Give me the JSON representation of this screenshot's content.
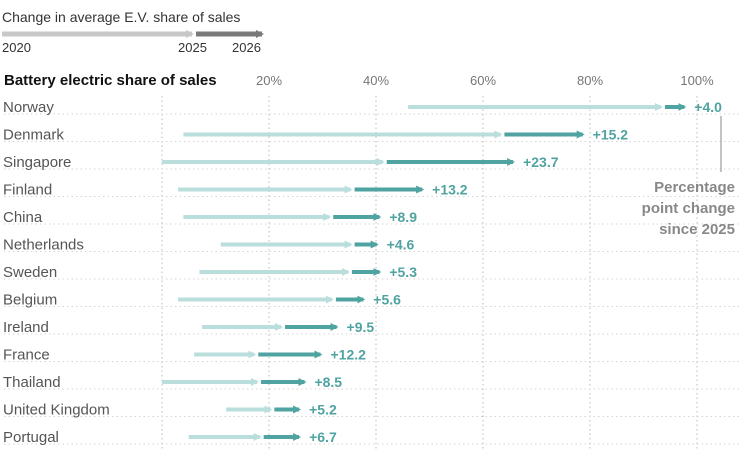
{
  "legend": {
    "title": "Change in average E.V. share of sales",
    "year_start": "2020",
    "year_mid": "2025",
    "year_end": "2026"
  },
  "annotation": {
    "lines": [
      "Percentage",
      "point change",
      "since 2025"
    ]
  },
  "colors": {
    "early_segment": "#b9dedb",
    "recent_segment": "#4fa3a0",
    "legend_early": "#c8c8c8",
    "legend_recent": "#7a7a7a",
    "change_label": "#4fa3a0",
    "grid": "#bbbbbb"
  },
  "chart_data": {
    "type": "arrow",
    "title": "Battery electric share of sales",
    "x_unit": "%",
    "xlim": [
      0,
      105
    ],
    "xticks": [
      20,
      40,
      60,
      80,
      100
    ],
    "xtick_labels": [
      "20%",
      "40%",
      "60%",
      "80%",
      "100%"
    ],
    "grid": true,
    "series_names": [
      "2020",
      "2025",
      "2026"
    ],
    "rows": [
      {
        "country": "Norway",
        "v2020": 46,
        "v2025": 94,
        "v2026": 98,
        "change_label": "+4.0"
      },
      {
        "country": "Denmark",
        "v2020": 4,
        "v2025": 64,
        "v2026": 79,
        "change_label": "+15.2"
      },
      {
        "country": "Singapore",
        "v2020": 0,
        "v2025": 42,
        "v2026": 66,
        "change_label": "+23.7"
      },
      {
        "country": "Finland",
        "v2020": 3,
        "v2025": 36,
        "v2026": 49,
        "change_label": "+13.2"
      },
      {
        "country": "China",
        "v2020": 4,
        "v2025": 32,
        "v2026": 41,
        "change_label": "+8.9"
      },
      {
        "country": "Netherlands",
        "v2020": 11,
        "v2025": 36,
        "v2026": 40.5,
        "change_label": "+4.6"
      },
      {
        "country": "Sweden",
        "v2020": 7,
        "v2025": 35.5,
        "v2026": 41,
        "change_label": "+5.3"
      },
      {
        "country": "Belgium",
        "v2020": 3,
        "v2025": 32.5,
        "v2026": 38,
        "change_label": "+5.6"
      },
      {
        "country": "Ireland",
        "v2020": 7.5,
        "v2025": 23,
        "v2026": 33,
        "change_label": "+9.5"
      },
      {
        "country": "France",
        "v2020": 6,
        "v2025": 18,
        "v2026": 30,
        "change_label": "+12.2"
      },
      {
        "country": "Thailand",
        "v2020": 0,
        "v2025": 18.5,
        "v2026": 27,
        "change_label": "+8.5"
      },
      {
        "country": "United Kingdom",
        "v2020": 12,
        "v2025": 21,
        "v2026": 26,
        "change_label": "+5.2"
      },
      {
        "country": "Portugal",
        "v2020": 5,
        "v2025": 19,
        "v2026": 26,
        "change_label": "+6.7"
      }
    ]
  }
}
